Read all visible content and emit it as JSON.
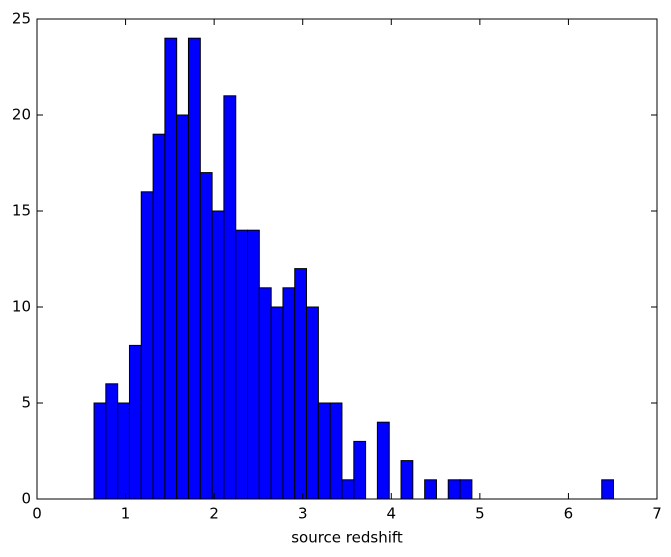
{
  "chart_data": {
    "type": "histogram",
    "xlabel": "source redshift",
    "bins": [
      0.644,
      0.777,
      0.911,
      1.044,
      1.177,
      1.311,
      1.444,
      1.577,
      1.71,
      1.844,
      1.977,
      2.11,
      2.244,
      2.377,
      2.51,
      2.644,
      2.777,
      2.91,
      3.043,
      3.177,
      3.31,
      3.443,
      3.577,
      3.71,
      3.843,
      3.977,
      4.11,
      4.243,
      4.377,
      4.51,
      4.643,
      4.776,
      4.91,
      5.043,
      5.176,
      5.31,
      5.443,
      5.576,
      5.709,
      5.843,
      5.976,
      6.109,
      6.243,
      6.376,
      6.509
    ],
    "values": [
      5,
      6,
      5,
      8,
      16,
      19,
      24,
      20,
      24,
      17,
      15,
      21,
      14,
      14,
      11,
      10,
      11,
      12,
      10,
      5,
      5,
      1,
      3,
      0,
      4,
      0,
      2,
      0,
      1,
      0,
      1,
      1,
      0,
      0,
      0,
      0,
      0,
      0,
      0,
      0,
      0,
      0,
      0,
      1
    ],
    "color": "#0000ff",
    "xlim": [
      0,
      7
    ],
    "xticks": [
      0,
      1,
      2,
      3,
      4,
      5,
      6,
      7
    ],
    "ylim": [
      0,
      25
    ],
    "yticks": [
      0,
      5,
      10,
      15,
      20,
      25
    ]
  }
}
